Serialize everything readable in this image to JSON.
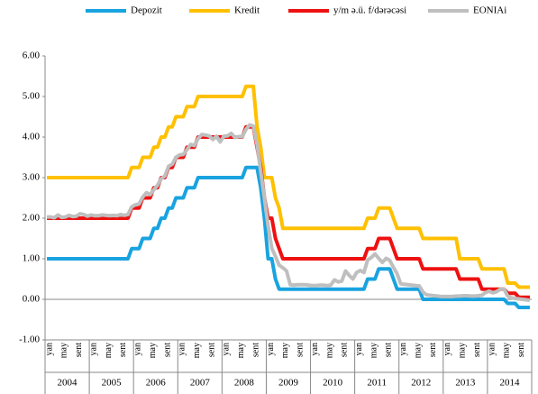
{
  "chart_data": {
    "type": "line",
    "categories": [
      "yan",
      null,
      null,
      null,
      "may",
      null,
      null,
      null,
      "sent",
      null,
      null,
      null,
      "yan",
      null,
      null,
      null,
      "may",
      null,
      null,
      null,
      "sent",
      null,
      null,
      null,
      "yan",
      null,
      null,
      null,
      "may",
      null,
      null,
      null,
      "sent",
      null,
      null,
      null,
      "yan",
      null,
      null,
      null,
      "may",
      null,
      null,
      null,
      "sent",
      null,
      null,
      null,
      "yan",
      null,
      null,
      null,
      "may",
      null,
      null,
      null,
      "sent",
      null,
      null,
      null,
      "yan",
      null,
      null,
      null,
      "may",
      null,
      null,
      null,
      "sent",
      null,
      null,
      null,
      "yan",
      null,
      null,
      null,
      "may",
      null,
      null,
      null,
      "sent",
      null,
      null,
      null,
      "yan",
      null,
      null,
      null,
      "may",
      null,
      null,
      null,
      "sent",
      null,
      null,
      null,
      "yan",
      null,
      null,
      null,
      "may",
      null,
      null,
      null,
      "sent",
      null,
      null,
      null,
      "yan",
      null,
      null,
      null,
      "may",
      null,
      null,
      null,
      "sent",
      null,
      null,
      null,
      "yan",
      null,
      null,
      null,
      "may",
      null,
      null,
      null,
      "sent",
      null,
      null,
      null
    ],
    "x_groups": [
      "2004",
      "2005",
      "2006",
      "2007",
      "2008",
      "2009",
      "2010",
      "2011",
      "2012",
      "2013",
      "2014"
    ],
    "series": [
      {
        "name": "Depozit",
        "color": "#19a3e0",
        "values": [
          1,
          1,
          1,
          1,
          1,
          1,
          1,
          1,
          1,
          1,
          1,
          1,
          1,
          1,
          1,
          1,
          1,
          1,
          1,
          1,
          1,
          1,
          1,
          1.25,
          1.25,
          1.25,
          1.5,
          1.5,
          1.5,
          1.75,
          1.75,
          2,
          2,
          2.25,
          2.25,
          2.5,
          2.5,
          2.5,
          2.75,
          2.75,
          2.75,
          3,
          3,
          3,
          3,
          3,
          3,
          3,
          3,
          3,
          3,
          3,
          3,
          3,
          3.25,
          3.25,
          3.25,
          3.25,
          2.75,
          2,
          1,
          1,
          0.5,
          0.25,
          0.25,
          0.25,
          0.25,
          0.25,
          0.25,
          0.25,
          0.25,
          0.25,
          0.25,
          0.25,
          0.25,
          0.25,
          0.25,
          0.25,
          0.25,
          0.25,
          0.25,
          0.25,
          0.25,
          0.25,
          0.25,
          0.25,
          0.25,
          0.5,
          0.5,
          0.5,
          0.75,
          0.75,
          0.75,
          0.75,
          0.5,
          0.25,
          0.25,
          0.25,
          0.25,
          0.25,
          0.25,
          0.25,
          0,
          0,
          0,
          0,
          0,
          0,
          0,
          0,
          0,
          0,
          0,
          0,
          0,
          0,
          0,
          0,
          0,
          0,
          0,
          0,
          0,
          0,
          0,
          -0.1,
          -0.1,
          -0.1,
          -0.2,
          -0.2,
          -0.2,
          -0.2
        ]
      },
      {
        "name": "Kredit",
        "color": "#ffc000",
        "values": [
          3,
          3,
          3,
          3,
          3,
          3,
          3,
          3,
          3,
          3,
          3,
          3,
          3,
          3,
          3,
          3,
          3,
          3,
          3,
          3,
          3,
          3,
          3,
          3.25,
          3.25,
          3.25,
          3.5,
          3.5,
          3.5,
          3.75,
          3.75,
          4,
          4,
          4.25,
          4.25,
          4.5,
          4.5,
          4.5,
          4.75,
          4.75,
          4.75,
          5,
          5,
          5,
          5,
          5,
          5,
          5,
          5,
          5,
          5,
          5,
          5,
          5,
          5.25,
          5.25,
          5.25,
          4.25,
          3.75,
          3,
          3,
          3,
          2.5,
          2.25,
          1.75,
          1.75,
          1.75,
          1.75,
          1.75,
          1.75,
          1.75,
          1.75,
          1.75,
          1.75,
          1.75,
          1.75,
          1.75,
          1.75,
          1.75,
          1.75,
          1.75,
          1.75,
          1.75,
          1.75,
          1.75,
          1.75,
          1.75,
          2,
          2,
          2,
          2.25,
          2.25,
          2.25,
          2.25,
          2,
          1.75,
          1.75,
          1.75,
          1.75,
          1.75,
          1.75,
          1.75,
          1.5,
          1.5,
          1.5,
          1.5,
          1.5,
          1.5,
          1.5,
          1.5,
          1.5,
          1.5,
          1,
          1,
          1,
          1,
          1,
          1,
          0.75,
          0.75,
          0.75,
          0.75,
          0.75,
          0.75,
          0.75,
          0.4,
          0.4,
          0.4,
          0.3,
          0.3,
          0.3,
          0.3
        ]
      },
      {
        "name": "y/m ə.ü. f/dərəcəsi",
        "color": "#ee1111",
        "values": [
          2,
          2,
          2,
          2,
          2,
          2,
          2,
          2,
          2,
          2,
          2,
          2,
          2,
          2,
          2,
          2,
          2,
          2,
          2,
          2,
          2,
          2,
          2,
          2.25,
          2.25,
          2.25,
          2.5,
          2.5,
          2.5,
          2.75,
          2.75,
          3,
          3,
          3.25,
          3.25,
          3.5,
          3.5,
          3.5,
          3.75,
          3.75,
          3.75,
          4,
          4,
          4,
          4,
          4,
          4,
          4,
          4,
          4,
          4,
          4,
          4,
          4,
          4.25,
          4.25,
          4.25,
          3.75,
          3.25,
          2.5,
          2,
          2,
          1.5,
          1.25,
          1,
          1,
          1,
          1,
          1,
          1,
          1,
          1,
          1,
          1,
          1,
          1,
          1,
          1,
          1,
          1,
          1,
          1,
          1,
          1,
          1,
          1,
          1,
          1.25,
          1.25,
          1.25,
          1.5,
          1.5,
          1.5,
          1.5,
          1.25,
          1,
          1,
          1,
          1,
          1,
          1,
          1,
          0.75,
          0.75,
          0.75,
          0.75,
          0.75,
          0.75,
          0.75,
          0.75,
          0.75,
          0.75,
          0.5,
          0.5,
          0.5,
          0.5,
          0.5,
          0.5,
          0.25,
          0.25,
          0.25,
          0.25,
          0.25,
          0.25,
          0.25,
          0.15,
          0.15,
          0.15,
          0.05,
          0.05,
          0.05,
          0.05
        ]
      },
      {
        "name": "EONIAi",
        "color": "#bfbfbf",
        "values": [
          2.03,
          2.03,
          2.01,
          2.08,
          2.02,
          2.03,
          2.07,
          2.04,
          2.05,
          2.11,
          2.09,
          2.05,
          2.08,
          2.06,
          2.06,
          2.08,
          2.07,
          2.06,
          2.07,
          2.06,
          2.09,
          2.07,
          2.09,
          2.28,
          2.33,
          2.35,
          2.52,
          2.63,
          2.58,
          2.7,
          2.81,
          2.97,
          3.04,
          3.28,
          3.33,
          3.5,
          3.56,
          3.57,
          3.69,
          3.82,
          3.79,
          3.96,
          4.06,
          4.05,
          4.03,
          3.94,
          4.02,
          3.88,
          4.02,
          4.03,
          4.09,
          3.99,
          4.01,
          4.01,
          4.19,
          4.3,
          4.27,
          3.82,
          3.15,
          2.49,
          1.81,
          1.26,
          1.06,
          0.84,
          0.78,
          0.7,
          0.36,
          0.35,
          0.36,
          0.36,
          0.36,
          0.35,
          0.34,
          0.34,
          0.35,
          0.35,
          0.34,
          0.35,
          0.48,
          0.43,
          0.45,
          0.7,
          0.59,
          0.5,
          0.66,
          0.71,
          0.66,
          0.97,
          1.03,
          1.12,
          1.01,
          0.91,
          1.01,
          0.96,
          0.79,
          0.63,
          0.38,
          0.37,
          0.36,
          0.35,
          0.34,
          0.33,
          0.18,
          0.11,
          0.1,
          0.09,
          0.08,
          0.07,
          0.07,
          0.07,
          0.07,
          0.08,
          0.08,
          0.09,
          0.09,
          0.08,
          0.08,
          0.09,
          0.1,
          0.17,
          0.2,
          0.16,
          0.19,
          0.25,
          0.25,
          0.08,
          0.04,
          0.02,
          0.01,
          0,
          -0.01,
          -0.03
        ]
      }
    ],
    "ylim": [
      -1,
      6
    ],
    "yticks": [
      {
        "value": -1,
        "label": "-1.00"
      },
      {
        "value": 0,
        "label": "0.00"
      },
      {
        "value": 1,
        "label": "1.00"
      },
      {
        "value": 2,
        "label": "2.00"
      },
      {
        "value": 3,
        "label": "3.00"
      },
      {
        "value": 4,
        "label": "4.00"
      },
      {
        "value": 5,
        "label": "5.00"
      },
      {
        "value": 6,
        "label": "6.00"
      }
    ]
  }
}
